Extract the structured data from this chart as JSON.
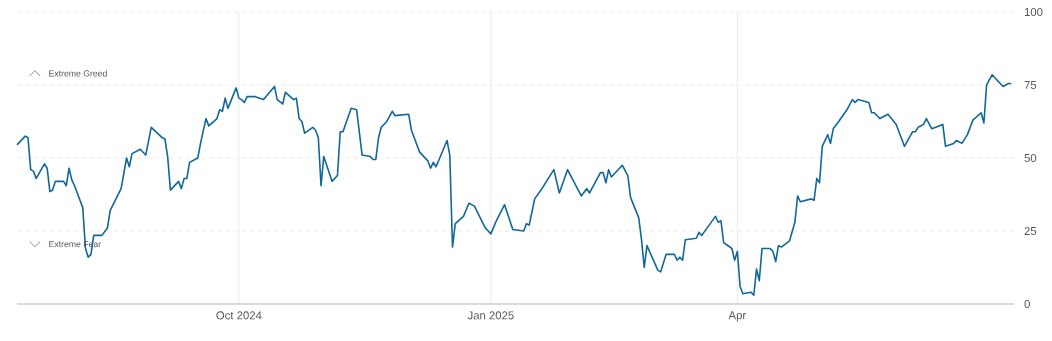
{
  "chart_data": {
    "type": "line",
    "x": [
      "2024-07-12",
      "2024-07-15",
      "2024-07-16",
      "2024-07-17",
      "2024-07-18",
      "2024-07-19",
      "2024-07-22",
      "2024-07-23",
      "2024-07-24",
      "2024-07-25",
      "2024-07-26",
      "2024-07-29",
      "2024-07-30",
      "2024-07-31",
      "2024-08-01",
      "2024-08-02",
      "2024-08-05",
      "2024-08-06",
      "2024-08-07",
      "2024-08-08",
      "2024-08-09",
      "2024-08-12",
      "2024-08-14",
      "2024-08-15",
      "2024-08-19",
      "2024-08-21",
      "2024-08-22",
      "2024-08-23",
      "2024-08-26",
      "2024-08-28",
      "2024-08-30",
      "2024-09-03",
      "2024-09-04",
      "2024-09-05",
      "2024-09-06",
      "2024-09-09",
      "2024-09-10",
      "2024-09-11",
      "2024-09-12",
      "2024-09-13",
      "2024-09-16",
      "2024-09-17",
      "2024-09-19",
      "2024-09-20",
      "2024-09-23",
      "2024-09-24",
      "2024-09-25",
      "2024-09-26",
      "2024-09-27",
      "2024-09-30",
      "2024-10-01",
      "2024-10-02",
      "2024-10-03",
      "2024-10-04",
      "2024-10-06",
      "2024-10-07",
      "2024-10-10",
      "2024-10-14",
      "2024-10-15",
      "2024-10-17",
      "2024-10-18",
      "2024-10-21",
      "2024-10-22",
      "2024-10-23",
      "2024-10-24",
      "2024-10-25",
      "2024-10-28",
      "2024-10-29",
      "2024-10-30",
      "2024-10-31",
      "2024-11-01",
      "2024-11-04",
      "2024-11-06",
      "2024-11-07",
      "2024-11-08",
      "2024-11-11",
      "2024-11-13",
      "2024-11-15",
      "2024-11-18",
      "2024-11-19",
      "2024-11-20",
      "2024-11-21",
      "2024-11-22",
      "2024-11-24",
      "2024-11-26",
      "2024-11-27",
      "2024-12-02",
      "2024-12-03",
      "2024-12-06",
      "2024-12-09",
      "2024-12-10",
      "2024-12-11",
      "2024-12-12",
      "2024-12-16",
      "2024-12-17",
      "2024-12-18",
      "2024-12-19",
      "2024-12-22",
      "2024-12-24",
      "2024-12-26",
      "2024-12-30",
      "2025-01-01",
      "2025-01-03",
      "2025-01-06",
      "2025-01-09",
      "2025-01-13",
      "2025-01-14",
      "2025-01-15",
      "2025-01-17",
      "2025-01-20",
      "2025-01-24",
      "2025-01-26",
      "2025-01-29",
      "2025-02-03",
      "2025-02-05",
      "2025-02-06",
      "2025-02-10",
      "2025-02-11",
      "2025-02-12",
      "2025-02-13",
      "2025-02-14",
      "2025-02-18",
      "2025-02-20",
      "2025-02-21",
      "2025-02-24",
      "2025-02-25",
      "2025-02-26",
      "2025-02-27",
      "2025-03-03",
      "2025-03-04",
      "2025-03-06",
      "2025-03-09",
      "2025-03-10",
      "2025-03-11",
      "2025-03-12",
      "2025-03-13",
      "2025-03-17",
      "2025-03-18",
      "2025-03-19",
      "2025-03-24",
      "2025-03-25",
      "2025-03-26",
      "2025-03-27",
      "2025-03-30",
      "2025-03-31",
      "2025-04-01",
      "2025-04-02",
      "2025-04-03",
      "2025-04-06",
      "2025-04-07",
      "2025-04-08",
      "2025-04-09",
      "2025-04-10",
      "2025-04-13",
      "2025-04-14",
      "2025-04-15",
      "2025-04-16",
      "2025-04-17",
      "2025-04-20",
      "2025-04-22",
      "2025-04-23",
      "2025-04-24",
      "2025-04-28",
      "2025-04-29",
      "2025-04-30",
      "2025-05-01",
      "2025-05-02",
      "2025-05-04",
      "2025-05-05",
      "2025-05-06",
      "2025-05-08",
      "2025-05-11",
      "2025-05-13",
      "2025-05-14",
      "2025-05-15",
      "2025-05-19",
      "2025-05-20",
      "2025-05-21",
      "2025-05-23",
      "2025-05-26",
      "2025-05-29",
      "2025-06-01",
      "2025-06-04",
      "2025-06-05",
      "2025-06-06",
      "2025-06-08",
      "2025-06-09",
      "2025-06-11",
      "2025-06-15",
      "2025-06-16",
      "2025-06-19",
      "2025-06-20",
      "2025-06-22",
      "2025-06-24",
      "2025-06-26",
      "2025-06-29",
      "2025-06-30",
      "2025-07-01",
      "2025-07-03",
      "2025-07-07",
      "2025-07-09",
      "2025-07-10"
    ],
    "values": [
      54.5,
      57.5,
      57,
      46,
      45.5,
      43,
      48,
      46.5,
      38.5,
      39,
      42,
      42,
      40.5,
      46.5,
      42.5,
      40.5,
      33,
      19,
      16,
      17,
      23.5,
      23.5,
      26,
      32,
      39.5,
      50,
      47,
      51.5,
      53,
      51,
      60.5,
      57,
      56.5,
      50.5,
      39,
      42,
      39.5,
      43,
      43,
      48.5,
      50,
      55,
      63.5,
      61,
      63.5,
      66.5,
      66,
      70.5,
      67,
      74,
      70.5,
      70,
      69,
      71,
      71,
      71,
      70,
      74.5,
      70,
      68.5,
      72.5,
      70,
      70.5,
      63.5,
      62.5,
      58.5,
      60.5,
      59.5,
      57,
      40.5,
      50.5,
      42,
      44,
      59,
      59,
      67,
      66.5,
      51,
      50.5,
      49.5,
      49.5,
      57,
      60.5,
      62.5,
      66,
      64.5,
      65,
      59.5,
      52,
      49,
      46.5,
      48.5,
      47,
      56,
      51,
      19.5,
      27.5,
      30,
      34.5,
      33.5,
      26,
      24,
      28.5,
      34,
      25.5,
      25,
      27.5,
      27,
      36,
      40,
      46,
      38,
      46,
      37,
      39.5,
      38,
      45,
      45,
      41.5,
      46,
      43.5,
      47.5,
      44,
      36.5,
      29.5,
      22,
      12.5,
      20,
      11.5,
      11,
      17,
      17,
      15,
      16,
      15,
      22,
      22.5,
      24.5,
      23.5,
      30,
      28,
      28.5,
      21,
      19,
      15,
      18,
      6,
      3.5,
      4,
      3,
      12,
      8,
      19,
      19,
      18,
      14.5,
      20,
      19.5,
      21.5,
      28,
      37,
      35,
      36,
      35.5,
      43,
      41.5,
      54,
      58,
      55,
      60,
      62.5,
      66.5,
      70,
      69,
      70,
      69,
      65.5,
      65.5,
      63.5,
      65,
      61.5,
      54,
      59,
      59,
      60.5,
      61.5,
      63.5,
      60,
      61.5,
      54,
      55,
      56,
      55,
      58,
      63,
      65.5,
      62,
      75,
      78.5,
      74.5,
      75.5,
      75.5
    ],
    "color": "#10689a",
    "xlim": [
      "2024-07-12",
      "2025-07-11"
    ],
    "xticks": [
      {
        "value": "2024-10-01",
        "label": "Oct 2024"
      },
      {
        "value": "2025-01-01",
        "label": "Jan 2025"
      },
      {
        "value": "2025-04-01",
        "label": "Apr"
      }
    ],
    "ylim": [
      0,
      100
    ],
    "yticks": [
      0,
      25,
      50,
      75,
      100
    ],
    "grid": true,
    "marker": "none",
    "line_style": "solid",
    "annotations": [
      "Extreme Greed",
      "Extreme Fear"
    ]
  }
}
